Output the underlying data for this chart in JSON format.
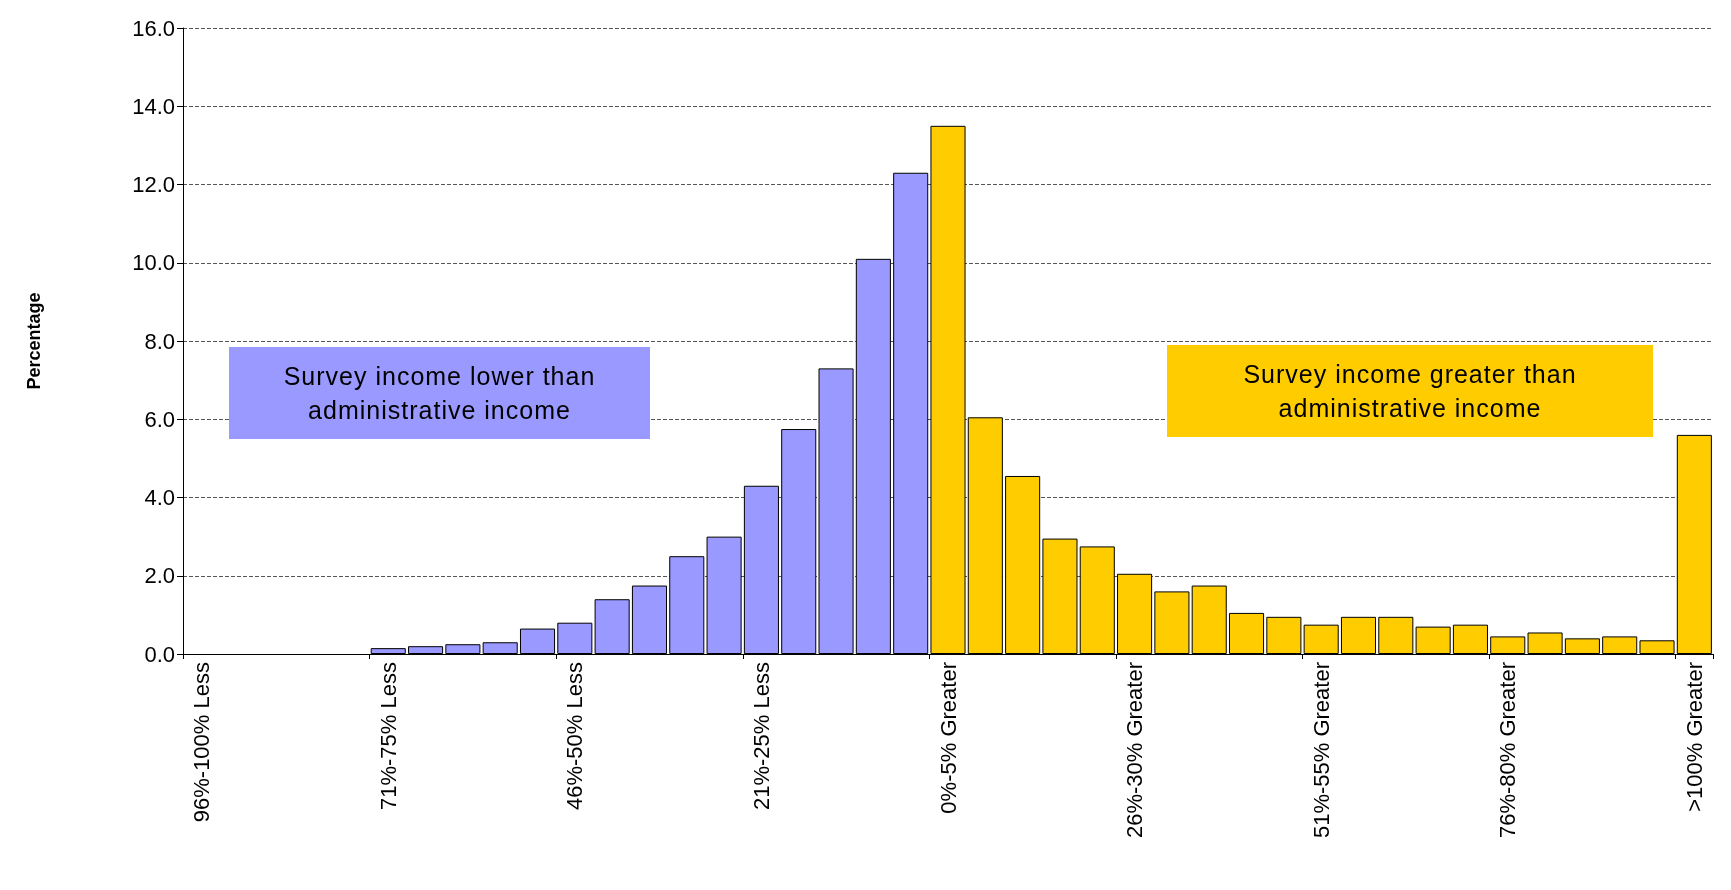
{
  "chart_data": {
    "type": "bar",
    "ylabel": "Percentage",
    "categories": [
      "96%-100% Less",
      null,
      null,
      null,
      null,
      "71%-75% Less",
      null,
      null,
      null,
      null,
      "46%-50% Less",
      null,
      null,
      null,
      null,
      "21%-25% Less",
      null,
      null,
      null,
      null,
      "0%-5% Greater",
      null,
      null,
      null,
      null,
      "26%-30% Greater",
      null,
      null,
      null,
      null,
      "51%-55% Greater",
      null,
      null,
      null,
      null,
      "76%-80% Greater",
      null,
      null,
      null,
      null,
      ">100% Greater"
    ],
    "series": [
      {
        "color": "#9999ff",
        "values": [
          null,
          null,
          null,
          null,
          null,
          0.15,
          0.2,
          0.25,
          0.3,
          0.65,
          0.8,
          1.4,
          1.75,
          2.5,
          3.0,
          4.3,
          5.75,
          7.3,
          10.1,
          12.3,
          null,
          null,
          null,
          null,
          null,
          null,
          null,
          null,
          null,
          null,
          null,
          null,
          null,
          null,
          null,
          null,
          null,
          null,
          null,
          null,
          null
        ]
      },
      {
        "color": "#ffcc00",
        "values": [
          null,
          null,
          null,
          null,
          null,
          null,
          null,
          null,
          null,
          null,
          null,
          null,
          null,
          null,
          null,
          null,
          null,
          null,
          null,
          null,
          13.5,
          6.05,
          4.55,
          2.95,
          2.75,
          2.05,
          1.6,
          1.75,
          1.05,
          0.95,
          0.75,
          0.95,
          0.95,
          0.7,
          0.75,
          0.45,
          0.55,
          0.4,
          0.45,
          0.35,
          5.6
        ]
      }
    ],
    "ylim": [
      0,
      16
    ],
    "yticks": [
      {
        "value": 0,
        "label": "0.0"
      },
      {
        "value": 2,
        "label": "2.0"
      },
      {
        "value": 4,
        "label": "4.0"
      },
      {
        "value": 6,
        "label": "6.0"
      },
      {
        "value": 8,
        "label": "8.0"
      },
      {
        "value": 10,
        "label": "10.0"
      },
      {
        "value": 12,
        "label": "12.0"
      },
      {
        "value": 14,
        "label": "14.0"
      },
      {
        "value": 16,
        "label": "16.0"
      }
    ],
    "grid": "y",
    "line_style": "dashed",
    "annotations": [
      "Survey income lower than administrative income",
      "Survey income greater than administrative income"
    ]
  }
}
